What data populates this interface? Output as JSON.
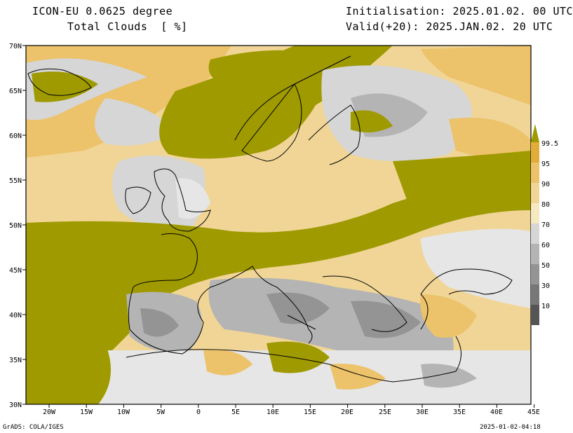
{
  "header": {
    "model": "ICON-EU 0.0625 degree",
    "variable": "Total Clouds  [ %]",
    "init": "Initialisation: 2025.01.02. 00 UTC",
    "valid": "Valid(+20): 2025.JAN.02. 20 UTC"
  },
  "axes": {
    "lat_labels": [
      "70N",
      "65N",
      "60N",
      "55N",
      "50N",
      "45N",
      "40N",
      "35N",
      "30N"
    ],
    "lon_labels": [
      "20W",
      "15W",
      "10W",
      "5W",
      "0",
      "5E",
      "10E",
      "15E",
      "20E",
      "25E",
      "30E",
      "35E",
      "40E",
      "45E"
    ]
  },
  "colorbar": {
    "labels": [
      "99.5",
      "95",
      "90",
      "80",
      "70",
      "60",
      "50",
      "30",
      "10"
    ],
    "colors": [
      "#9e9a00",
      "#e2ac3a",
      "#ecc26a",
      "#f0d596",
      "#f6e8bf",
      "#d6d6d6",
      "#b4b4b4",
      "#949494",
      "#777777",
      "#555555"
    ]
  },
  "footer": {
    "left": "GrADS: COLA/IGES",
    "right": "2025-01-02-04:18"
  }
}
